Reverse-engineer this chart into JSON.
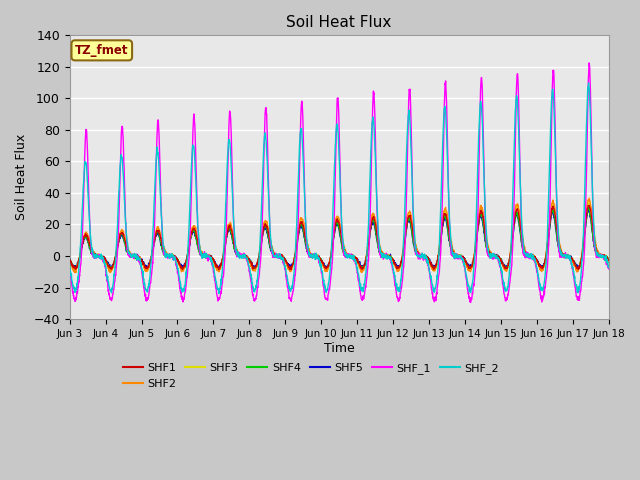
{
  "title": "Soil Heat Flux",
  "xlabel": "Time",
  "ylabel": "Soil Heat Flux",
  "ylim": [
    -40,
    140
  ],
  "yticks": [
    -40,
    -20,
    0,
    20,
    40,
    60,
    80,
    100,
    120,
    140
  ],
  "xtick_labels": [
    "Jun 3",
    "Jun 4",
    "Jun 5",
    "Jun 6",
    "Jun 7",
    "Jun 8",
    "Jun 9",
    "Jun 10",
    "Jun 11",
    "Jun 12",
    "Jun 13",
    "Jun 14",
    "Jun 15",
    "Jun 16",
    "Jun 17",
    "Jun 18"
  ],
  "annotation_text": "TZ_fmet",
  "annotation_color": "#8B0000",
  "annotation_bg": "#FFFF99",
  "annotation_border": "#8B6914",
  "series_colors": {
    "SHF1": "#cc0000",
    "SHF2": "#ff8800",
    "SHF3": "#dddd00",
    "SHF4": "#00cc00",
    "SHF5": "#0000cc",
    "SHF_1": "#ff00ff",
    "SHF_2": "#00cccc"
  },
  "fig_facecolor": "#c8c8c8",
  "axes_facecolor": "#e8e8e8",
  "grid_color": "#ffffff",
  "n_days": 15,
  "points_per_day": 144
}
